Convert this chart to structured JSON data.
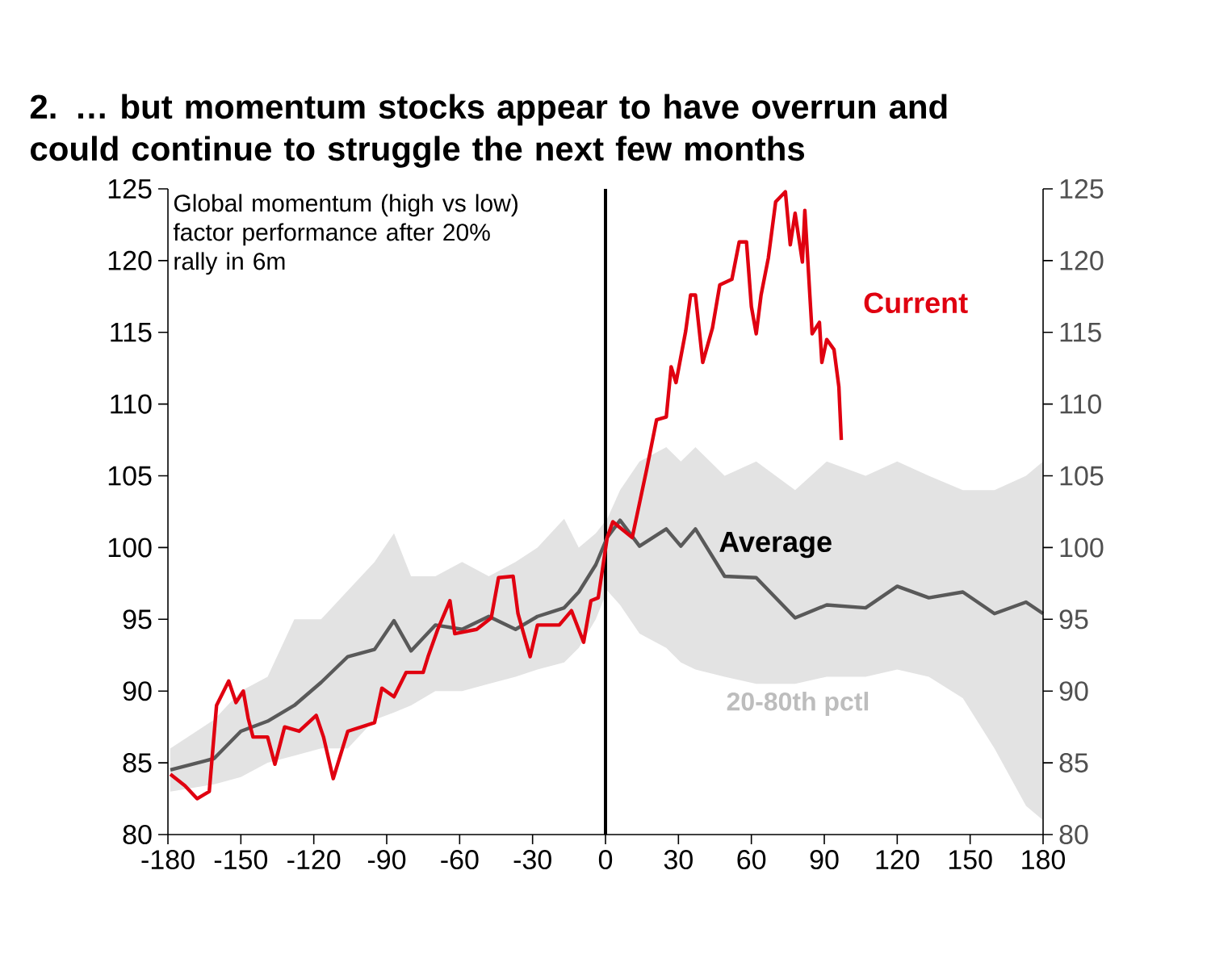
{
  "chart_data": {
    "type": "line",
    "title": "2. … but momentum stocks appear to have overrun and could continue to struggle the next few months",
    "annotations": [
      "Global momentum (high vs low) factor performance after 20% rally in 6m",
      "20-80th pctl"
    ],
    "xlim": [
      -180,
      180
    ],
    "xticks": [
      -180,
      -150,
      -120,
      -90,
      -60,
      -30,
      0,
      30,
      60,
      90,
      120,
      150,
      180
    ],
    "ylim": [
      80,
      125
    ],
    "yticks": [
      80,
      85,
      90,
      95,
      100,
      105,
      110,
      115,
      120,
      125
    ],
    "y2lim": [
      80,
      125
    ],
    "y2ticks": [
      80,
      85,
      90,
      95,
      100,
      105,
      110,
      115,
      120,
      125
    ],
    "grid": false,
    "marker": "none",
    "line_style": "solid",
    "ref_lines": [
      {
        "axis": "x",
        "value": 0,
        "label": null,
        "color": "#000000"
      }
    ],
    "series": [
      {
        "name": "Average",
        "color": "#595959",
        "x": [
          -179,
          -161,
          -150,
          -139,
          -128,
          -117,
          -106,
          -95,
          -87,
          -80,
          -70,
          -59,
          -48,
          -37,
          -28,
          -17,
          -11,
          -4,
          0.7,
          6,
          14,
          25,
          31,
          37,
          49,
          62,
          78,
          91,
          107,
          120,
          133,
          147,
          160,
          173,
          180
        ],
        "values": [
          84.5,
          85.3,
          87.2,
          87.9,
          89.0,
          90.6,
          92.4,
          92.9,
          94.9,
          92.8,
          94.6,
          94.3,
          95.2,
          94.3,
          95.2,
          95.8,
          96.9,
          98.8,
          100.7,
          101.9,
          100.1,
          101.3,
          100.1,
          101.3,
          98.0,
          97.9,
          95.1,
          96.0,
          95.8,
          97.3,
          96.5,
          96.9,
          95.4,
          96.2,
          95.4
        ],
        "lower": [
          83,
          83.5,
          84,
          85,
          85.5,
          86,
          86,
          88,
          88.5,
          89,
          90,
          90,
          90.5,
          91,
          91.5,
          92,
          93,
          95,
          97,
          96,
          94,
          93,
          92,
          91.5,
          91,
          90.5,
          90.5,
          91,
          91,
          91.5,
          91,
          89.5,
          86,
          82,
          81
        ],
        "upper": [
          86,
          88,
          90,
          91,
          95,
          95,
          97,
          99,
          101,
          98,
          98,
          99,
          98,
          99,
          100,
          102,
          100,
          101,
          102,
          104,
          106,
          107,
          106,
          107,
          105,
          106,
          104,
          106,
          105,
          106,
          105,
          104,
          104,
          105,
          106
        ]
      },
      {
        "name": "Current",
        "color": "#e00010",
        "x": [
          -179,
          -173,
          -168,
          -163,
          -160,
          -155,
          -152,
          -149,
          -147,
          -145,
          -139,
          -136,
          -132,
          -126,
          -119,
          -116,
          -112,
          -106,
          -95,
          -92,
          -87,
          -82,
          -75,
          -73,
          -69,
          -64,
          -62,
          -53,
          -47,
          -44,
          -38,
          -36,
          -31,
          -28,
          -19,
          -14,
          -9,
          -6,
          -3,
          0.7,
          3,
          11,
          17,
          21,
          25,
          27,
          29,
          33,
          35,
          37,
          40,
          44,
          47,
          52,
          55,
          58,
          60,
          62,
          64,
          67,
          70,
          74,
          76,
          78,
          81,
          82,
          85,
          88,
          89,
          91,
          94,
          96,
          97
        ],
        "values": [
          84.2,
          83.4,
          82.5,
          83.0,
          89.0,
          90.7,
          89.2,
          90.0,
          88.1,
          86.8,
          86.8,
          84.9,
          87.5,
          87.2,
          88.3,
          86.8,
          83.9,
          87.2,
          87.8,
          90.2,
          89.6,
          91.3,
          91.3,
          92.4,
          94.3,
          96.3,
          94.0,
          94.3,
          95.1,
          97.9,
          98.0,
          95.4,
          92.4,
          94.6,
          94.6,
          95.6,
          93.4,
          96.3,
          96.5,
          100.7,
          101.8,
          100.7,
          105.5,
          108.9,
          109.1,
          112.6,
          111.5,
          115.1,
          117.6,
          117.6,
          112.9,
          115.3,
          118.3,
          118.7,
          121.3,
          121.3,
          116.8,
          114.9,
          117.6,
          120.2,
          124.1,
          124.8,
          121.1,
          123.3,
          119.9,
          123.5,
          114.9,
          115.7,
          112.9,
          114.5,
          113.8,
          111.2,
          107.5
        ]
      }
    ]
  }
}
